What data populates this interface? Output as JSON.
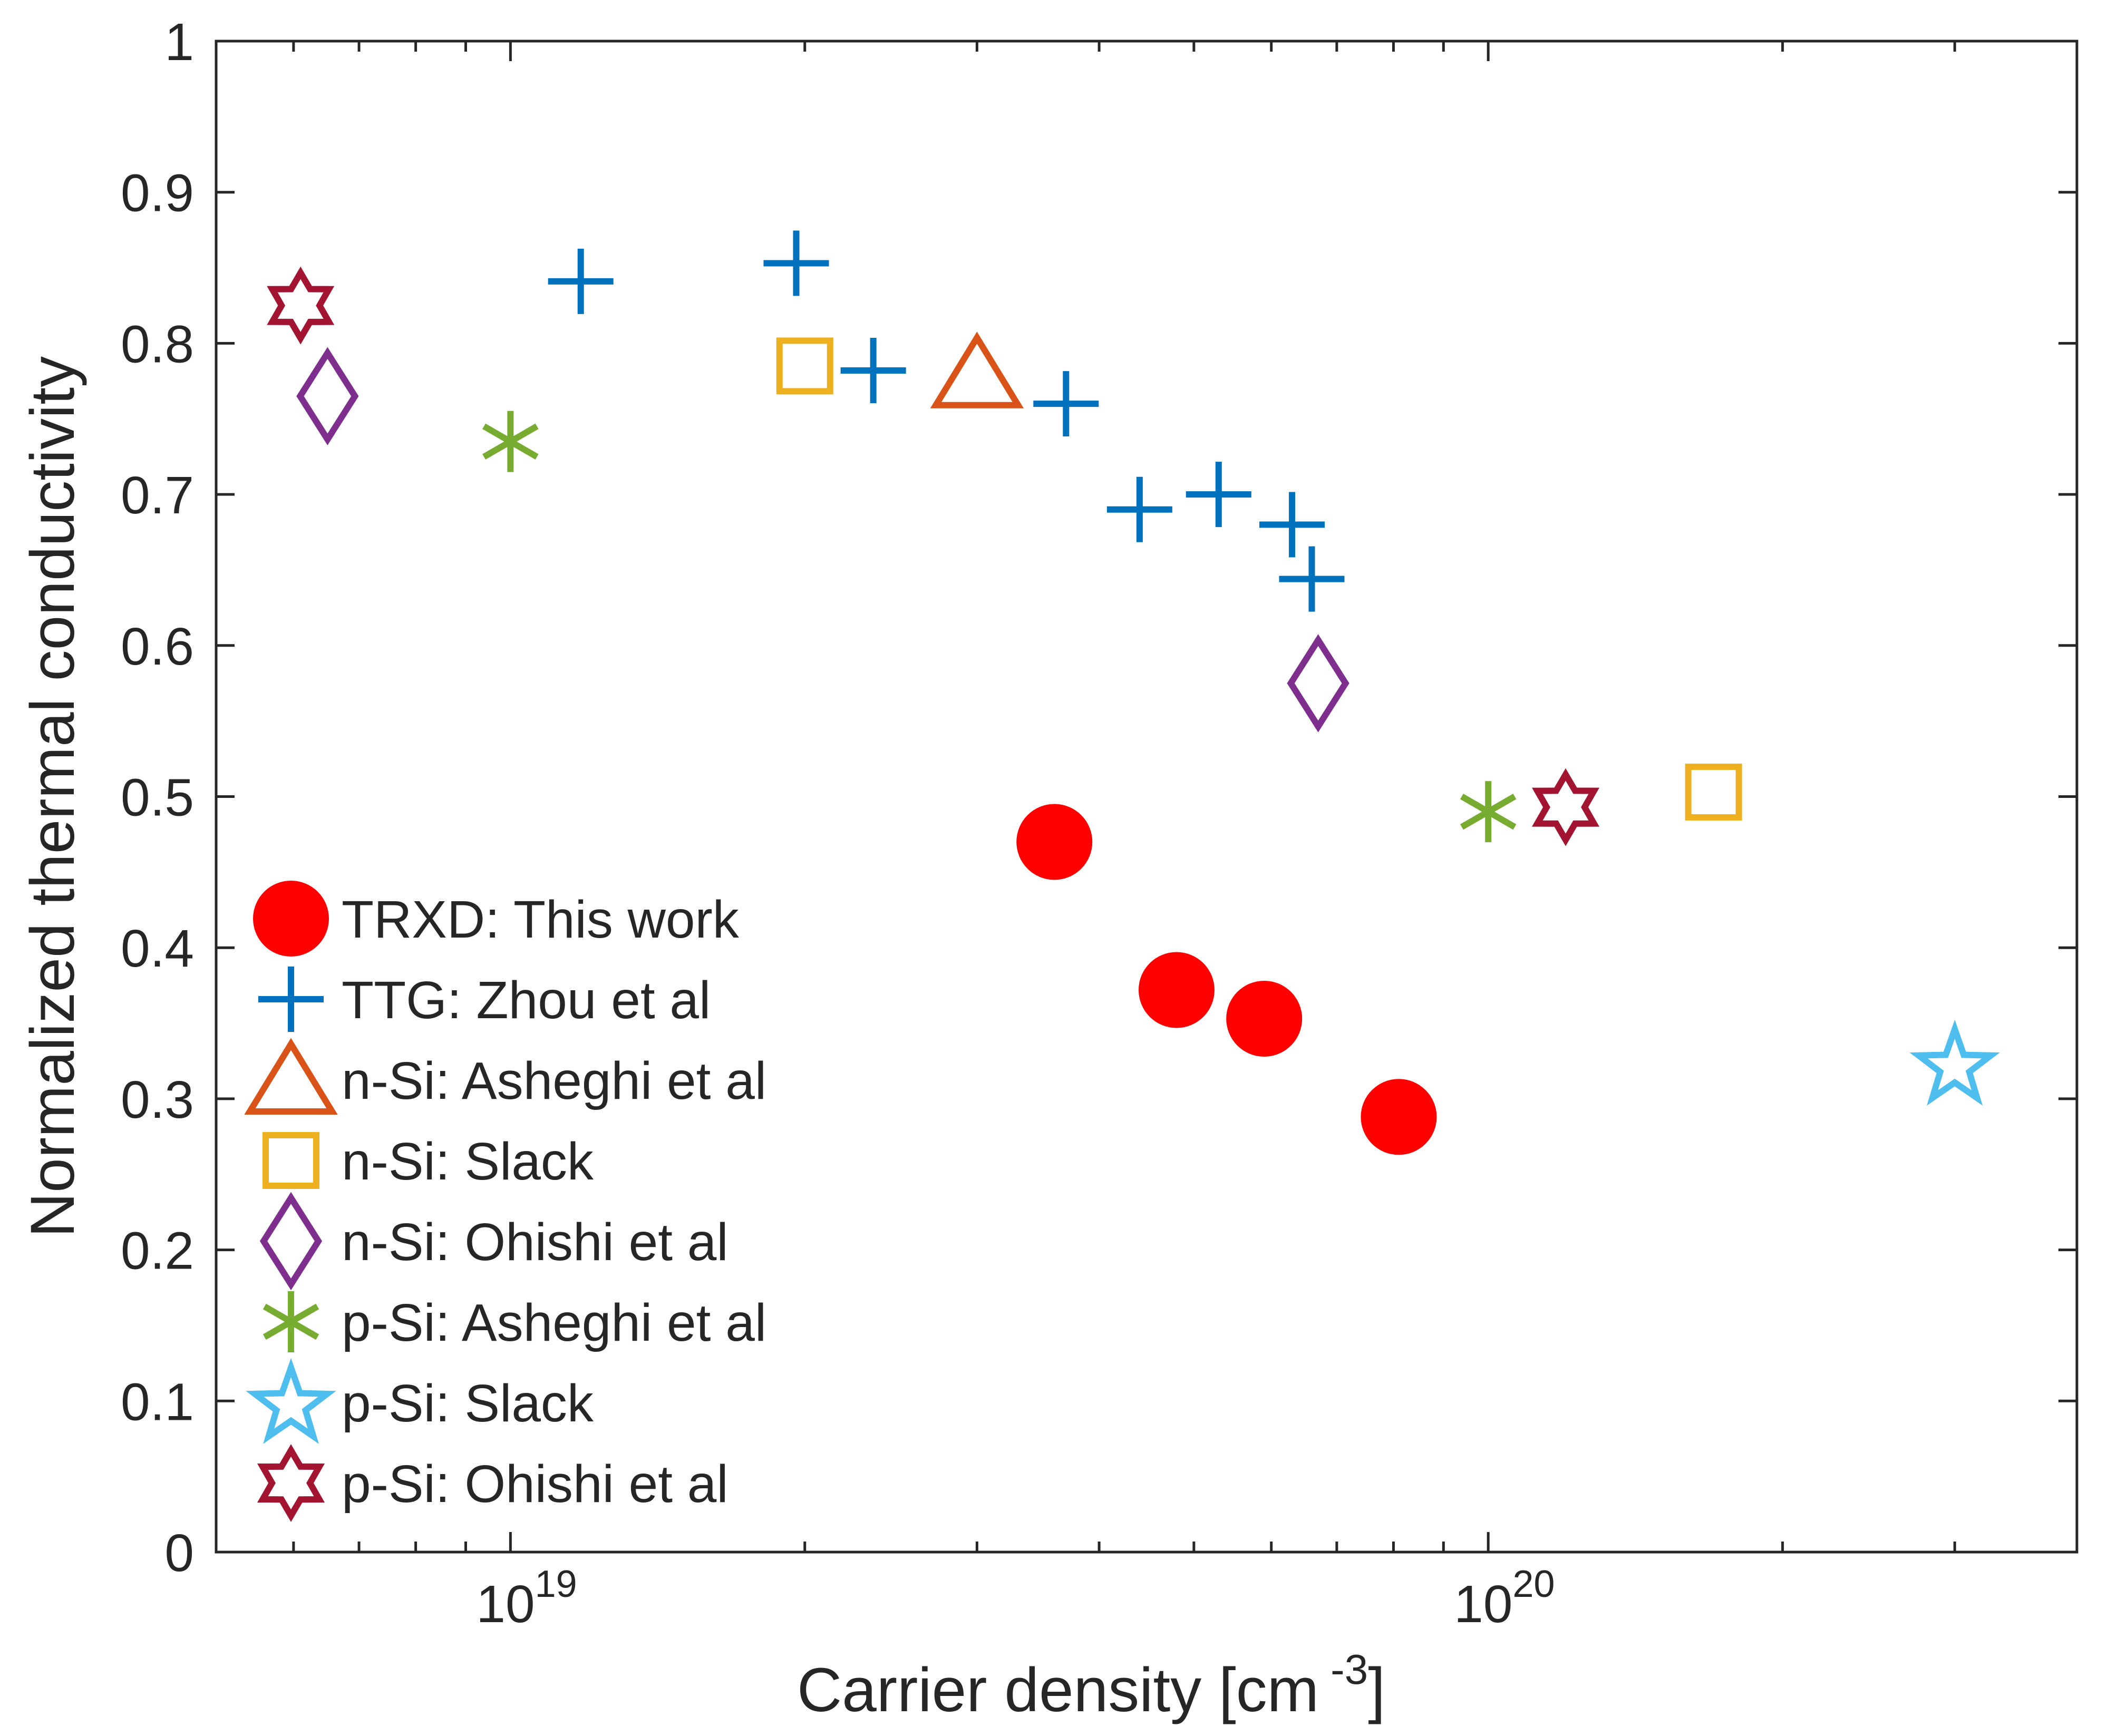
{
  "chart_data": {
    "type": "scatter",
    "title": "",
    "xlabel": "Carrier density [cm",
    "xlabel_superscript": "-3",
    "xlabel_close": "]",
    "ylabel": "Normalized thermal conductivity",
    "x_scale": "log",
    "xlim": [
      5e+18,
      4e+20
    ],
    "ylim": [
      0,
      1
    ],
    "grid": false,
    "legend_position": "bottom-left",
    "y_ticks": [
      {
        "value": 0,
        "label": "0"
      },
      {
        "value": 0.1,
        "label": "0.1"
      },
      {
        "value": 0.2,
        "label": "0.2"
      },
      {
        "value": 0.3,
        "label": "0.3"
      },
      {
        "value": 0.4,
        "label": "0.4"
      },
      {
        "value": 0.5,
        "label": "0.5"
      },
      {
        "value": 0.6,
        "label": "0.6"
      },
      {
        "value": 0.7,
        "label": "0.7"
      },
      {
        "value": 0.8,
        "label": "0.8"
      },
      {
        "value": 0.9,
        "label": "0.9"
      },
      {
        "value": 1,
        "label": "1"
      }
    ],
    "x_major_ticks": [
      {
        "value": 1e+19,
        "base": "10",
        "exponent": "19"
      },
      {
        "value": 1e+20,
        "base": "10",
        "exponent": "20"
      }
    ],
    "x_minor_ticks": [
      6e+18,
      7e+18,
      8e+18,
      9e+18,
      2e+19,
      3e+19,
      4e+19,
      5e+19,
      6e+19,
      7e+19,
      8e+19,
      9e+19,
      2e+20,
      3e+20,
      4e+20
    ],
    "series": [
      {
        "name": "TRXD: This work",
        "marker": "filled-circle",
        "color": "#ff0000",
        "points": [
          {
            "x": 3.6e+19,
            "y": 0.47
          },
          {
            "x": 4.8e+19,
            "y": 0.372
          },
          {
            "x": 5.9e+19,
            "y": 0.353
          },
          {
            "x": 8.1e+19,
            "y": 0.288
          }
        ]
      },
      {
        "name": "TTG: Zhou et al",
        "marker": "plus",
        "color": "#0072bd",
        "points": [
          {
            "x": 1.18e+19,
            "y": 0.841
          },
          {
            "x": 1.96e+19,
            "y": 0.853
          },
          {
            "x": 2.35e+19,
            "y": 0.782
          },
          {
            "x": 3.7e+19,
            "y": 0.76
          },
          {
            "x": 4.4e+19,
            "y": 0.69
          },
          {
            "x": 5.3e+19,
            "y": 0.7
          },
          {
            "x": 6.3e+19,
            "y": 0.68
          },
          {
            "x": 6.6e+19,
            "y": 0.644
          }
        ]
      },
      {
        "name": "n-Si: Asheghi et al",
        "marker": "triangle",
        "color": "#d95319",
        "points": [
          {
            "x": 3e+19,
            "y": 0.78
          }
        ]
      },
      {
        "name": "n-Si: Slack",
        "marker": "square",
        "color": "#edb120",
        "points": [
          {
            "x": 2e+19,
            "y": 0.785
          },
          {
            "x": 1.7e+20,
            "y": 0.503
          }
        ]
      },
      {
        "name": "n-Si: Ohishi et al",
        "marker": "diamond",
        "color": "#7e2f8e",
        "points": [
          {
            "x": 6.5e+18,
            "y": 0.765
          },
          {
            "x": 6.7e+19,
            "y": 0.575
          }
        ]
      },
      {
        "name": "p-Si: Asheghi et al",
        "marker": "asterisk",
        "color": "#77ac30",
        "points": [
          {
            "x": 1e+19,
            "y": 0.735
          },
          {
            "x": 1e+20,
            "y": 0.49
          }
        ]
      },
      {
        "name": "p-Si: Slack",
        "marker": "pentagram",
        "color": "#4dbeee",
        "points": [
          {
            "x": 3e+20,
            "y": 0.323
          }
        ]
      },
      {
        "name": "p-Si: Ohishi et al",
        "marker": "hexagram",
        "color": "#a2142f",
        "points": [
          {
            "x": 6.1e+18,
            "y": 0.825
          },
          {
            "x": 1.2e+20,
            "y": 0.493
          }
        ]
      }
    ]
  }
}
